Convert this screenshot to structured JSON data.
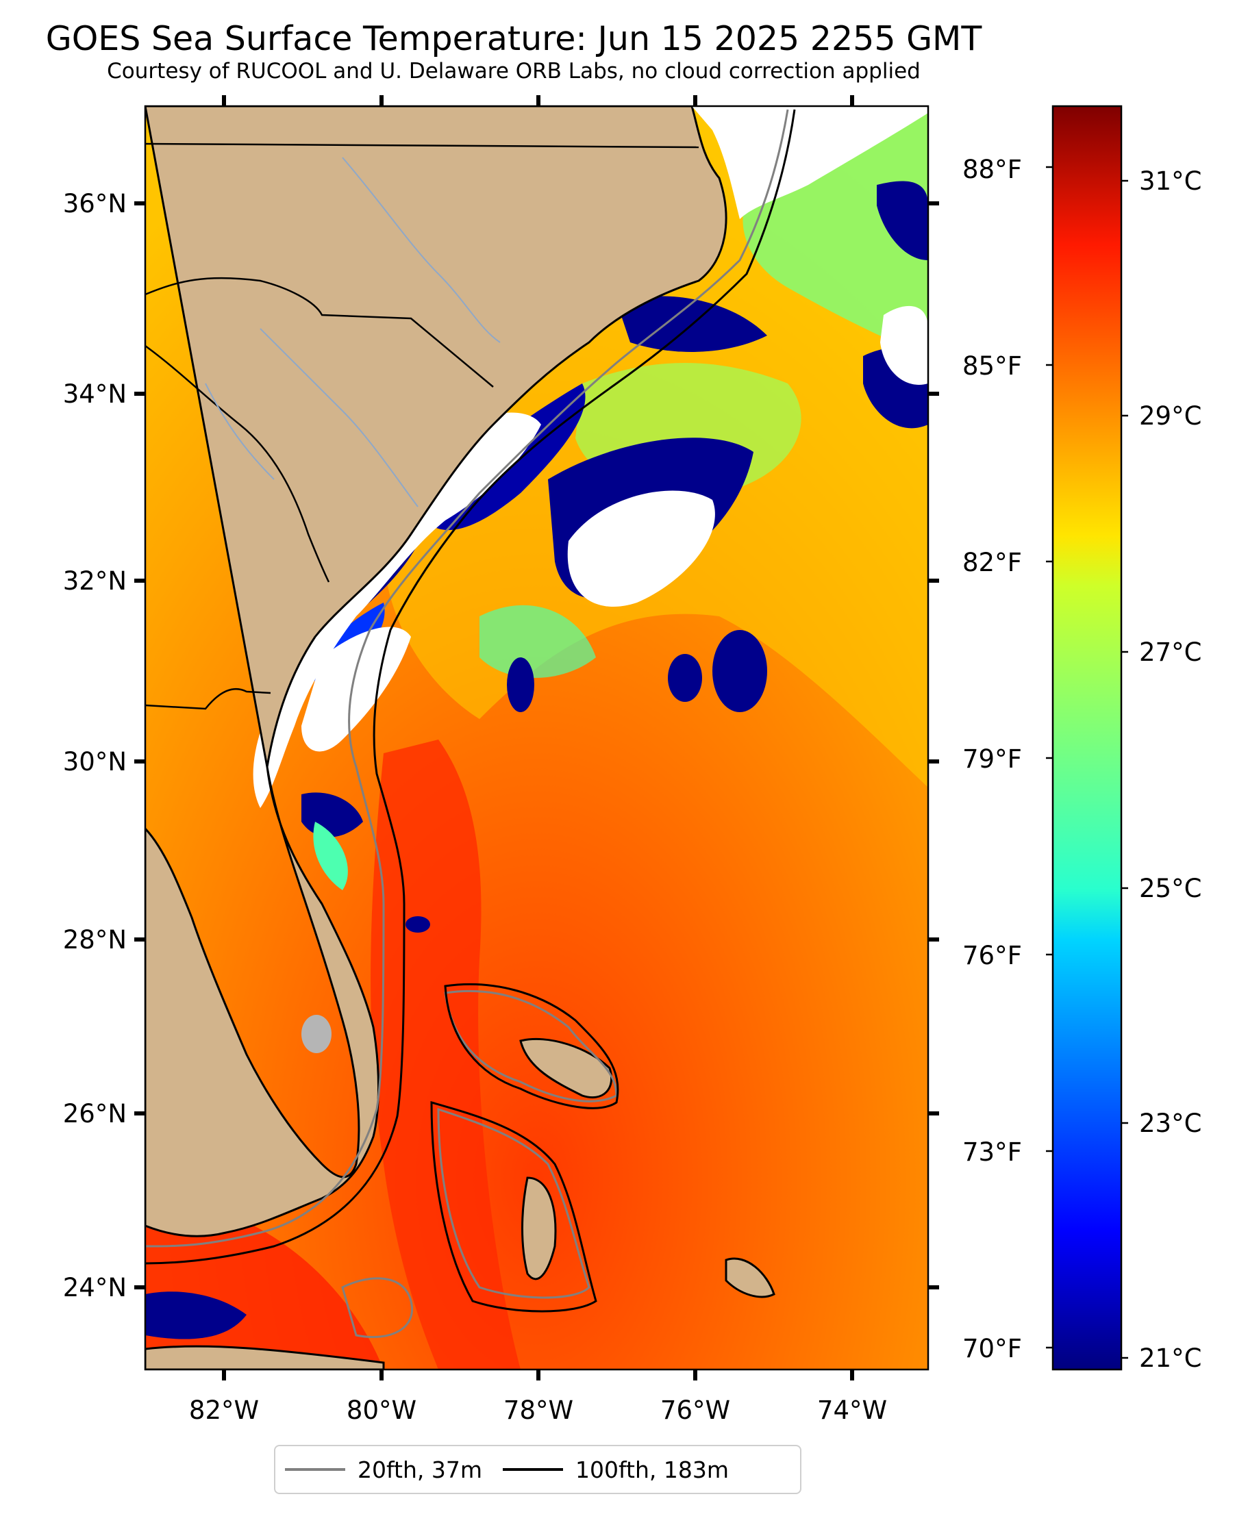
{
  "title": "GOES Sea Surface Temperature: Jun 15 2025 2255 GMT",
  "subtitle": "Courtesy of RUCOOL and U. Delaware ORB Labs, no cloud correction applied",
  "map": {
    "lat_labels": [
      "36°N",
      "34°N",
      "32°N",
      "30°N",
      "28°N",
      "26°N",
      "24°N"
    ],
    "lon_labels": [
      "82°W",
      "80°W",
      "78°W",
      "76°W",
      "74°W"
    ],
    "land_color": "#d2b48c",
    "cloud_mask_color": "#ffffff"
  },
  "colorbar": {
    "celsius_labels": [
      "31°C",
      "29°C",
      "27°C",
      "25°C",
      "23°C",
      "21°C"
    ],
    "fahrenheit_labels": [
      "88°F",
      "85°F",
      "82°F",
      "79°F",
      "76°F",
      "73°F",
      "70°F"
    ],
    "colormap": "jet",
    "range_c": [
      20.8,
      31.8
    ]
  },
  "legend": {
    "items": [
      {
        "label": "20fth, 37m",
        "color": "#808080"
      },
      {
        "label": "100fth, 183m",
        "color": "#000000"
      }
    ]
  }
}
